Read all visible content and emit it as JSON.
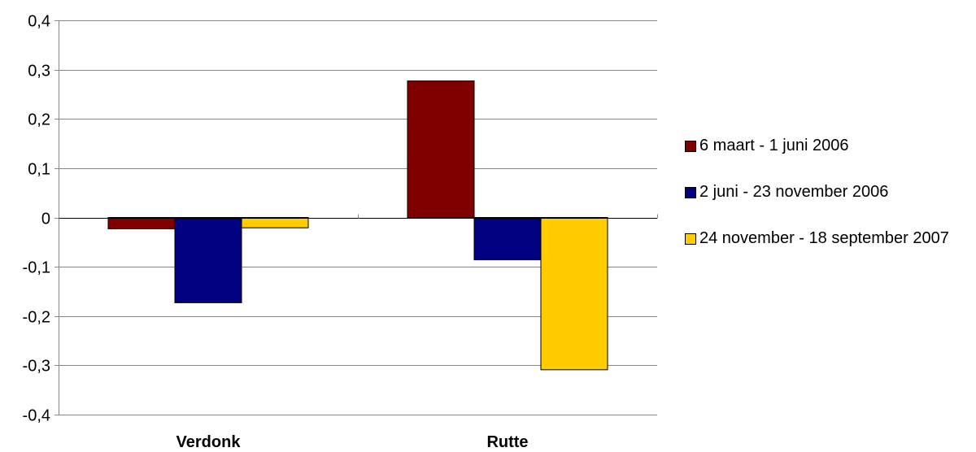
{
  "chart_data": {
    "type": "bar",
    "categories": [
      "Verdonk",
      "Rutte"
    ],
    "series": [
      {
        "name": "6 maart - 1 juni 2006",
        "color": "#800000",
        "values": [
          -0.023,
          0.277
        ]
      },
      {
        "name": "2 juni - 23 november 2006",
        "color": "#000080",
        "values": [
          -0.173,
          -0.086
        ]
      },
      {
        "name": "24 november - 18 september 2007",
        "color": "#FFCC00",
        "values": [
          -0.021,
          -0.309
        ]
      }
    ],
    "yticks": [
      "0,4",
      "0,3",
      "0,2",
      "0,1",
      "0",
      "-0,1",
      "-0,2",
      "-0,3",
      "-0,4"
    ],
    "ylim": [
      -0.4,
      0.4
    ],
    "grid": true,
    "legend_position": "right"
  }
}
